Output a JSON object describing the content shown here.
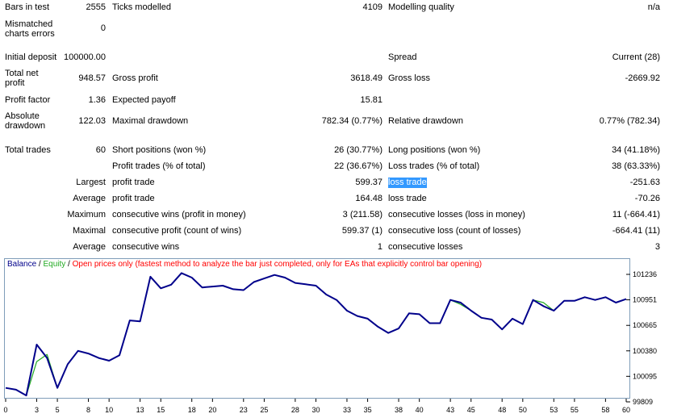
{
  "report": {
    "bars_in_test": {
      "label": "Bars in test",
      "value": "2555"
    },
    "ticks_modelled": {
      "label": "Ticks modelled",
      "value": "4109"
    },
    "modelling_quality": {
      "label": "Modelling quality",
      "value": "n/a"
    },
    "mismatched": {
      "label": "Mismatched charts errors",
      "value": "0"
    },
    "initial_deposit": {
      "label": "Initial deposit",
      "value": "100000.00"
    },
    "spread": {
      "label": "Spread",
      "value": "Current (28)"
    },
    "total_net_profit": {
      "label": "Total net profit",
      "value": "948.57"
    },
    "gross_profit": {
      "label": "Gross profit",
      "value": "3618.49"
    },
    "gross_loss": {
      "label": "Gross loss",
      "value": "-2669.92"
    },
    "profit_factor": {
      "label": "Profit factor",
      "value": "1.36"
    },
    "expected_payoff": {
      "label": "Expected payoff",
      "value": "15.81"
    },
    "absolute_drawdown": {
      "label": "Absolute drawdown",
      "value": "122.03"
    },
    "maximal_drawdown": {
      "label": "Maximal drawdown",
      "value": "782.34 (0.77%)"
    },
    "relative_drawdown": {
      "label": "Relative drawdown",
      "value": "0.77% (782.34)"
    },
    "total_trades": {
      "label": "Total trades",
      "value": "60"
    },
    "short_positions": {
      "label": "Short positions (won %)",
      "value": "26 (30.77%)"
    },
    "long_positions": {
      "label": "Long positions (won %)",
      "value": "34 (41.18%)"
    },
    "profit_trades": {
      "label": "Profit trades (% of total)",
      "value": "22 (36.67%)"
    },
    "loss_trades": {
      "label": "Loss trades (% of total)",
      "value": "38 (63.33%)"
    },
    "largest": {
      "prefix": "Largest",
      "profit_label": "profit trade",
      "profit_value": "599.37",
      "loss_label": "loss trade",
      "loss_value": "-251.63"
    },
    "average": {
      "prefix": "Average",
      "profit_label": "profit trade",
      "profit_value": "164.48",
      "loss_label": "loss trade",
      "loss_value": "-70.26"
    },
    "maximum": {
      "prefix": "Maximum",
      "wins_label": "consecutive wins (profit in money)",
      "wins_value": "3 (211.58)",
      "losses_label": "consecutive losses (loss in money)",
      "losses_value": "11 (-664.41)"
    },
    "maximal": {
      "prefix": "Maximal",
      "wins_label": "consecutive profit (count of wins)",
      "wins_value": "599.37 (1)",
      "losses_label": "consecutive loss (count of losses)",
      "losses_value": "-664.41 (11)"
    },
    "average_consec": {
      "prefix": "Average",
      "wins_label": "consecutive wins",
      "wins_value": "1",
      "losses_label": "consecutive losses",
      "losses_value": "3"
    }
  },
  "chart_legend": {
    "balance": "Balance",
    "sep1": " / ",
    "equity": "Equity",
    "sep2": " / ",
    "mode": "Open prices only (fastest method to analyze the bar just completed, only for EAs that explicitly control bar opening)"
  },
  "colors": {
    "balance": "#00008b",
    "equity": "#22aa22",
    "mode": "#ff0000",
    "border": "#7f9db9"
  },
  "chart_data": {
    "type": "line",
    "x_ticks": [
      "0",
      "3",
      "5",
      "8",
      "10",
      "13",
      "15",
      "18",
      "20",
      "23",
      "25",
      "28",
      "30",
      "33",
      "35",
      "38",
      "40",
      "43",
      "45",
      "48",
      "50",
      "53",
      "55",
      "58",
      "60"
    ],
    "y_ticks": [
      "101236",
      "100951",
      "100665",
      "100380",
      "100095",
      "99809"
    ],
    "ylim": [
      99809,
      101236
    ],
    "xlim": [
      0,
      60
    ],
    "series": [
      {
        "name": "Balance",
        "x": [
          0,
          1,
          2,
          3,
          4,
          5,
          6,
          7,
          8,
          9,
          10,
          11,
          12,
          13,
          14,
          15,
          16,
          17,
          18,
          19,
          20,
          21,
          22,
          23,
          24,
          25,
          26,
          27,
          28,
          29,
          30,
          31,
          32,
          33,
          34,
          35,
          36,
          37,
          38,
          39,
          40,
          41,
          42,
          43,
          44,
          45,
          46,
          47,
          48,
          49,
          50,
          51,
          52,
          53,
          54,
          55,
          56,
          57,
          58,
          59,
          60
        ],
        "values": [
          99965,
          99945,
          99880,
          100450,
          100300,
          99965,
          100230,
          100380,
          100350,
          100300,
          100270,
          100330,
          100720,
          100710,
          101210,
          101080,
          101120,
          101250,
          101200,
          101090,
          101100,
          101110,
          101070,
          101060,
          101150,
          101190,
          101230,
          101200,
          101140,
          101125,
          101110,
          101010,
          100950,
          100830,
          100770,
          100740,
          100650,
          100580,
          100630,
          100800,
          100790,
          100690,
          100690,
          100950,
          100920,
          100830,
          100750,
          100730,
          100620,
          100740,
          100680,
          100950,
          100880,
          100830,
          100940,
          100940,
          100980,
          100950,
          100980,
          100920,
          100960
        ]
      },
      {
        "name": "Equity",
        "x": [
          0,
          1,
          2,
          3,
          4,
          5,
          6,
          7,
          8,
          9,
          10,
          11,
          12,
          13,
          14,
          15,
          16,
          17,
          18,
          19,
          20,
          21,
          22,
          23,
          24,
          25,
          26,
          27,
          28,
          29,
          30,
          31,
          32,
          33,
          34,
          35,
          36,
          37,
          38,
          39,
          40,
          41,
          42,
          43,
          44,
          45,
          46,
          47,
          48,
          49,
          50,
          51,
          52,
          53,
          54,
          55,
          56,
          57,
          58,
          59,
          60
        ],
        "values": [
          99965,
          99945,
          99880,
          100260,
          100340,
          99965,
          100230,
          100380,
          100350,
          100300,
          100270,
          100330,
          100720,
          100710,
          101210,
          101080,
          101120,
          101250,
          101200,
          101090,
          101100,
          101110,
          101070,
          101060,
          101150,
          101190,
          101230,
          101200,
          101140,
          101125,
          101110,
          101010,
          100950,
          100830,
          100770,
          100740,
          100650,
          100580,
          100630,
          100800,
          100790,
          100690,
          100690,
          100950,
          100900,
          100830,
          100750,
          100730,
          100620,
          100740,
          100680,
          100950,
          100920,
          100830,
          100940,
          100940,
          100980,
          100950,
          100980,
          100920,
          100960
        ]
      }
    ]
  }
}
